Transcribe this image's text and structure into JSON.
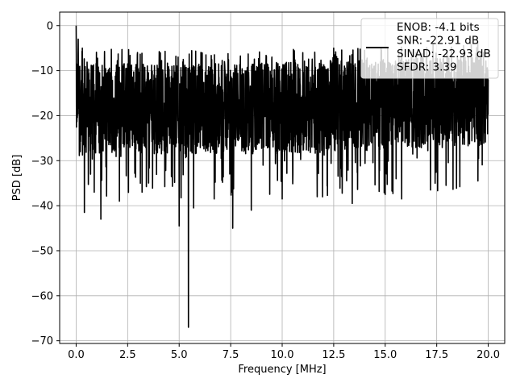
{
  "chart_data": {
    "type": "line",
    "title": "",
    "xlabel": "Frequency [MHz]",
    "ylabel": "PSD [dB]",
    "xlim": [
      -0.8,
      20.8
    ],
    "ylim": [
      -70.6,
      3.0
    ],
    "xticks": [
      0.0,
      2.5,
      5.0,
      7.5,
      10.0,
      12.5,
      15.0,
      17.5,
      20.0
    ],
    "xtick_labels": [
      "0.0",
      "2.5",
      "5.0",
      "7.5",
      "10.0",
      "12.5",
      "15.0",
      "17.5",
      "20.0"
    ],
    "yticks": [
      0,
      -10,
      -20,
      -30,
      -40,
      -50,
      -60,
      -70
    ],
    "ytick_labels": [
      "0",
      "−10",
      "−20",
      "−30",
      "−40",
      "−50",
      "−60",
      "−70"
    ],
    "grid": true,
    "legend_position": "top-right",
    "series": [
      {
        "color": "#000000",
        "description_points": [
          [
            0.0,
            0.0
          ],
          [
            0.02,
            -8.5
          ],
          [
            0.05,
            -16.0
          ],
          [
            0.1,
            -3.0
          ],
          [
            0.15,
            -12.0
          ],
          [
            0.2,
            -28.0
          ],
          [
            0.3,
            -5.0
          ],
          [
            0.4,
            -41.5
          ],
          [
            0.5,
            -14.0
          ],
          [
            0.7,
            -33.0
          ],
          [
            1.0,
            -9.0
          ],
          [
            1.2,
            -43.0
          ],
          [
            1.5,
            -11.0
          ],
          [
            2.1,
            -39.0
          ],
          [
            2.5,
            -8.5
          ],
          [
            3.2,
            -37.0
          ],
          [
            4.0,
            -10.0
          ],
          [
            5.0,
            -44.5
          ],
          [
            5.2,
            -7.5
          ],
          [
            5.45,
            -67.0
          ],
          [
            5.7,
            -40.5
          ],
          [
            6.3,
            -6.5
          ],
          [
            6.7,
            -38.5
          ],
          [
            7.2,
            -8.0
          ],
          [
            7.6,
            -45.0
          ],
          [
            8.5,
            -41.0
          ],
          [
            9.5,
            -7.0
          ],
          [
            10.0,
            -38.5
          ],
          [
            11.0,
            -6.0
          ],
          [
            11.7,
            -38.0
          ],
          [
            12.5,
            -5.0
          ],
          [
            13.4,
            -39.5
          ],
          [
            14.0,
            -5.5
          ],
          [
            15.0,
            -37.5
          ],
          [
            15.8,
            -38.5
          ],
          [
            16.5,
            -6.0
          ],
          [
            17.2,
            -36.5
          ],
          [
            18.0,
            -5.5
          ],
          [
            19.5,
            -34.5
          ],
          [
            20.0,
            -12.0
          ]
        ]
      }
    ],
    "legend": {
      "lines": [
        "ENOB: -4.1 bits",
        "SNR: -22.91 dB",
        "SINAD: -22.93 dB",
        "SFDR: 3.39"
      ]
    }
  }
}
